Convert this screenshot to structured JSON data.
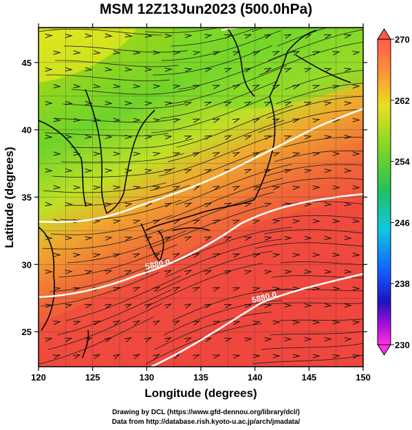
{
  "title": "MSM 12Z13Jun2023 (500.0hPa)",
  "map": {
    "xlabel": "Longitude (degrees)",
    "ylabel": "Latitude  (degrees)",
    "xlim": [
      120,
      150
    ],
    "ylim": [
      22.4,
      47.6
    ],
    "xticks": [
      120,
      125,
      130,
      135,
      140,
      145,
      150
    ],
    "yticks": [
      25,
      30,
      35,
      40,
      45
    ],
    "contours": [
      {
        "label": "5880.0"
      },
      {
        "label": "5880.0"
      },
      {
        "label": ""
      },
      {
        "label": ""
      }
    ]
  },
  "colorbar": {
    "ticks": [
      230,
      238,
      246,
      254,
      262,
      270
    ],
    "range": [
      230,
      270
    ]
  },
  "credits": {
    "line1": "Drawing by DCL (https://www.gfd-dennou.org/library/dcl/)",
    "line2": "Data from http://database.rish.kyoto-u.ac.jp/arch/jmadata/"
  }
}
